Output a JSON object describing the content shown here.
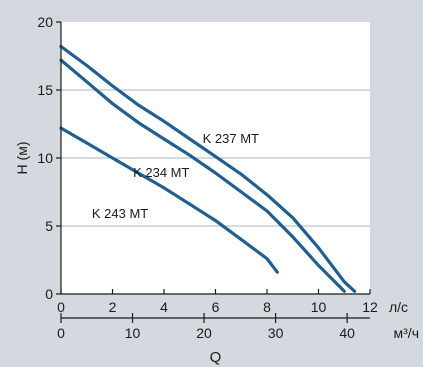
{
  "colors": {
    "background": "#d3d9df",
    "plot_area": "#ffffff",
    "curve": "#1f5f91",
    "axis": "#1a1a1a",
    "grid": "#aeb6bf"
  },
  "chart_data": {
    "type": "line",
    "title": "",
    "ylabel": "H (м)",
    "xlabel": "Q",
    "x_unit": "л/с",
    "x2_unit": "м³/ч",
    "xlim": [
      0,
      12
    ],
    "ylim": [
      0,
      20
    ],
    "x2lim": [
      0,
      43.2
    ],
    "x_ticks": [
      "0",
      "2",
      "4",
      "6",
      "8",
      "10",
      "12"
    ],
    "y_ticks": [
      "0",
      "5",
      "10",
      "15",
      "20"
    ],
    "x2_ticks": [
      "0",
      "10",
      "20",
      "30",
      "40"
    ],
    "grid": "horizontal",
    "series": [
      {
        "name": "K 237 MT",
        "points": [
          [
            0,
            18.2
          ],
          [
            1,
            16.8
          ],
          [
            2,
            15.3
          ],
          [
            3,
            13.9
          ],
          [
            4,
            12.7
          ],
          [
            5,
            11.4
          ],
          [
            6,
            10.1
          ],
          [
            7,
            8.8
          ],
          [
            8,
            7.3
          ],
          [
            9,
            5.6
          ],
          [
            10,
            3.4
          ],
          [
            11,
            0.9
          ],
          [
            11.4,
            0.2
          ]
        ]
      },
      {
        "name": "K 234 MT",
        "points": [
          [
            0,
            17.2
          ],
          [
            1,
            15.6
          ],
          [
            2,
            14.0
          ],
          [
            3,
            12.6
          ],
          [
            4,
            11.4
          ],
          [
            5,
            10.2
          ],
          [
            6,
            8.9
          ],
          [
            7,
            7.5
          ],
          [
            8,
            6.1
          ],
          [
            9,
            4.2
          ],
          [
            10,
            2.1
          ],
          [
            11,
            0.2
          ]
        ]
      },
      {
        "name": "K 243 MT",
        "points": [
          [
            0,
            12.2
          ],
          [
            1,
            11.1
          ],
          [
            2,
            10.0
          ],
          [
            3,
            8.9
          ],
          [
            4,
            7.8
          ],
          [
            5,
            6.6
          ],
          [
            6,
            5.4
          ],
          [
            7,
            4.0
          ],
          [
            8,
            2.6
          ],
          [
            8.4,
            1.6
          ]
        ]
      }
    ]
  }
}
